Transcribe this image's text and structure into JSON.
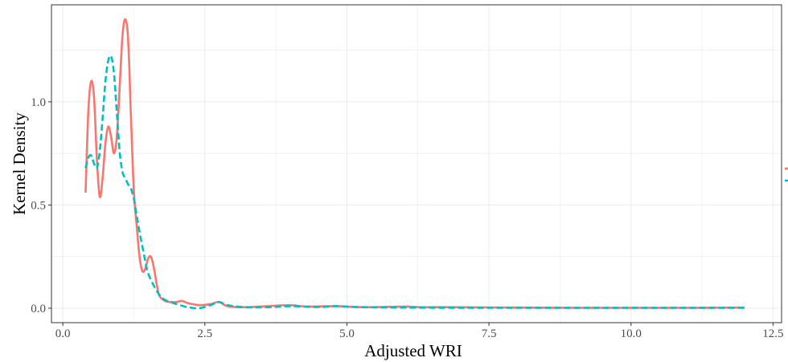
{
  "chart_data": {
    "type": "line",
    "title": "",
    "xlabel": "Adjusted WRI",
    "ylabel": "Kernel Density",
    "xlim": [
      -0.2,
      12.65
    ],
    "ylim": [
      -0.07,
      1.47
    ],
    "x_ticks": [
      0.0,
      2.5,
      5.0,
      7.5,
      10.0,
      12.5
    ],
    "x_tick_labels": [
      "0.0",
      "2.5",
      "5.0",
      "7.5",
      "10.0",
      "12.5"
    ],
    "y_ticks": [
      0.0,
      0.5,
      1.0
    ],
    "y_tick_labels": [
      "0.0",
      "0.5",
      "1.0"
    ],
    "grid": true,
    "legend": {
      "position": "right",
      "title": "",
      "entries": []
    },
    "series": [
      {
        "color": "#F8766D",
        "line_style": "solid",
        "x": [
          0.4,
          0.45,
          0.5,
          0.55,
          0.6,
          0.65,
          0.7,
          0.75,
          0.8,
          0.85,
          0.9,
          0.95,
          1.0,
          1.05,
          1.1,
          1.15,
          1.2,
          1.25,
          1.3,
          1.35,
          1.4,
          1.45,
          1.5,
          1.55,
          1.6,
          1.65,
          1.7,
          1.8,
          1.9,
          2.0,
          2.1,
          2.2,
          2.4,
          2.6,
          2.75,
          2.9,
          3.2,
          3.6,
          4.0,
          4.3,
          4.8,
          5.3,
          6.0,
          6.3,
          6.8,
          8.0,
          9.0,
          10.0,
          11.0,
          12.0
        ],
        "y": [
          0.56,
          0.96,
          1.1,
          1.02,
          0.72,
          0.54,
          0.63,
          0.8,
          0.88,
          0.83,
          0.75,
          0.83,
          1.07,
          1.32,
          1.4,
          1.3,
          0.92,
          0.57,
          0.4,
          0.25,
          0.18,
          0.19,
          0.24,
          0.25,
          0.2,
          0.12,
          0.06,
          0.035,
          0.03,
          0.03,
          0.035,
          0.025,
          0.015,
          0.02,
          0.03,
          0.01,
          0.005,
          0.01,
          0.015,
          0.008,
          0.01,
          0.005,
          0.008,
          0.005,
          0.005,
          0.003,
          0.002,
          0.002,
          0.002,
          0.003
        ]
      },
      {
        "color": "#00BFC4",
        "line_style": "dashed",
        "x": [
          0.4,
          0.45,
          0.5,
          0.55,
          0.6,
          0.65,
          0.7,
          0.75,
          0.8,
          0.85,
          0.9,
          0.95,
          1.0,
          1.05,
          1.1,
          1.15,
          1.2,
          1.25,
          1.3,
          1.35,
          1.4,
          1.45,
          1.5,
          1.6,
          1.7,
          1.8,
          1.9,
          2.0,
          2.2,
          2.4,
          2.6,
          2.75,
          2.9,
          3.2,
          3.6,
          4.0,
          4.5,
          4.8,
          5.3,
          6.0,
          7.0,
          8.0,
          9.0,
          10.0,
          11.0,
          12.0
        ],
        "y": [
          0.68,
          0.73,
          0.74,
          0.7,
          0.68,
          0.76,
          0.92,
          1.1,
          1.2,
          1.22,
          1.14,
          0.95,
          0.76,
          0.66,
          0.63,
          0.6,
          0.58,
          0.53,
          0.45,
          0.37,
          0.3,
          0.23,
          0.17,
          0.11,
          0.065,
          0.04,
          0.03,
          0.02,
          0.005,
          0.0,
          0.015,
          0.03,
          0.015,
          0.005,
          0.005,
          0.01,
          0.006,
          0.01,
          0.005,
          0.003,
          0.002,
          0.002,
          0.002,
          0.002,
          0.002,
          0.002
        ]
      }
    ]
  }
}
